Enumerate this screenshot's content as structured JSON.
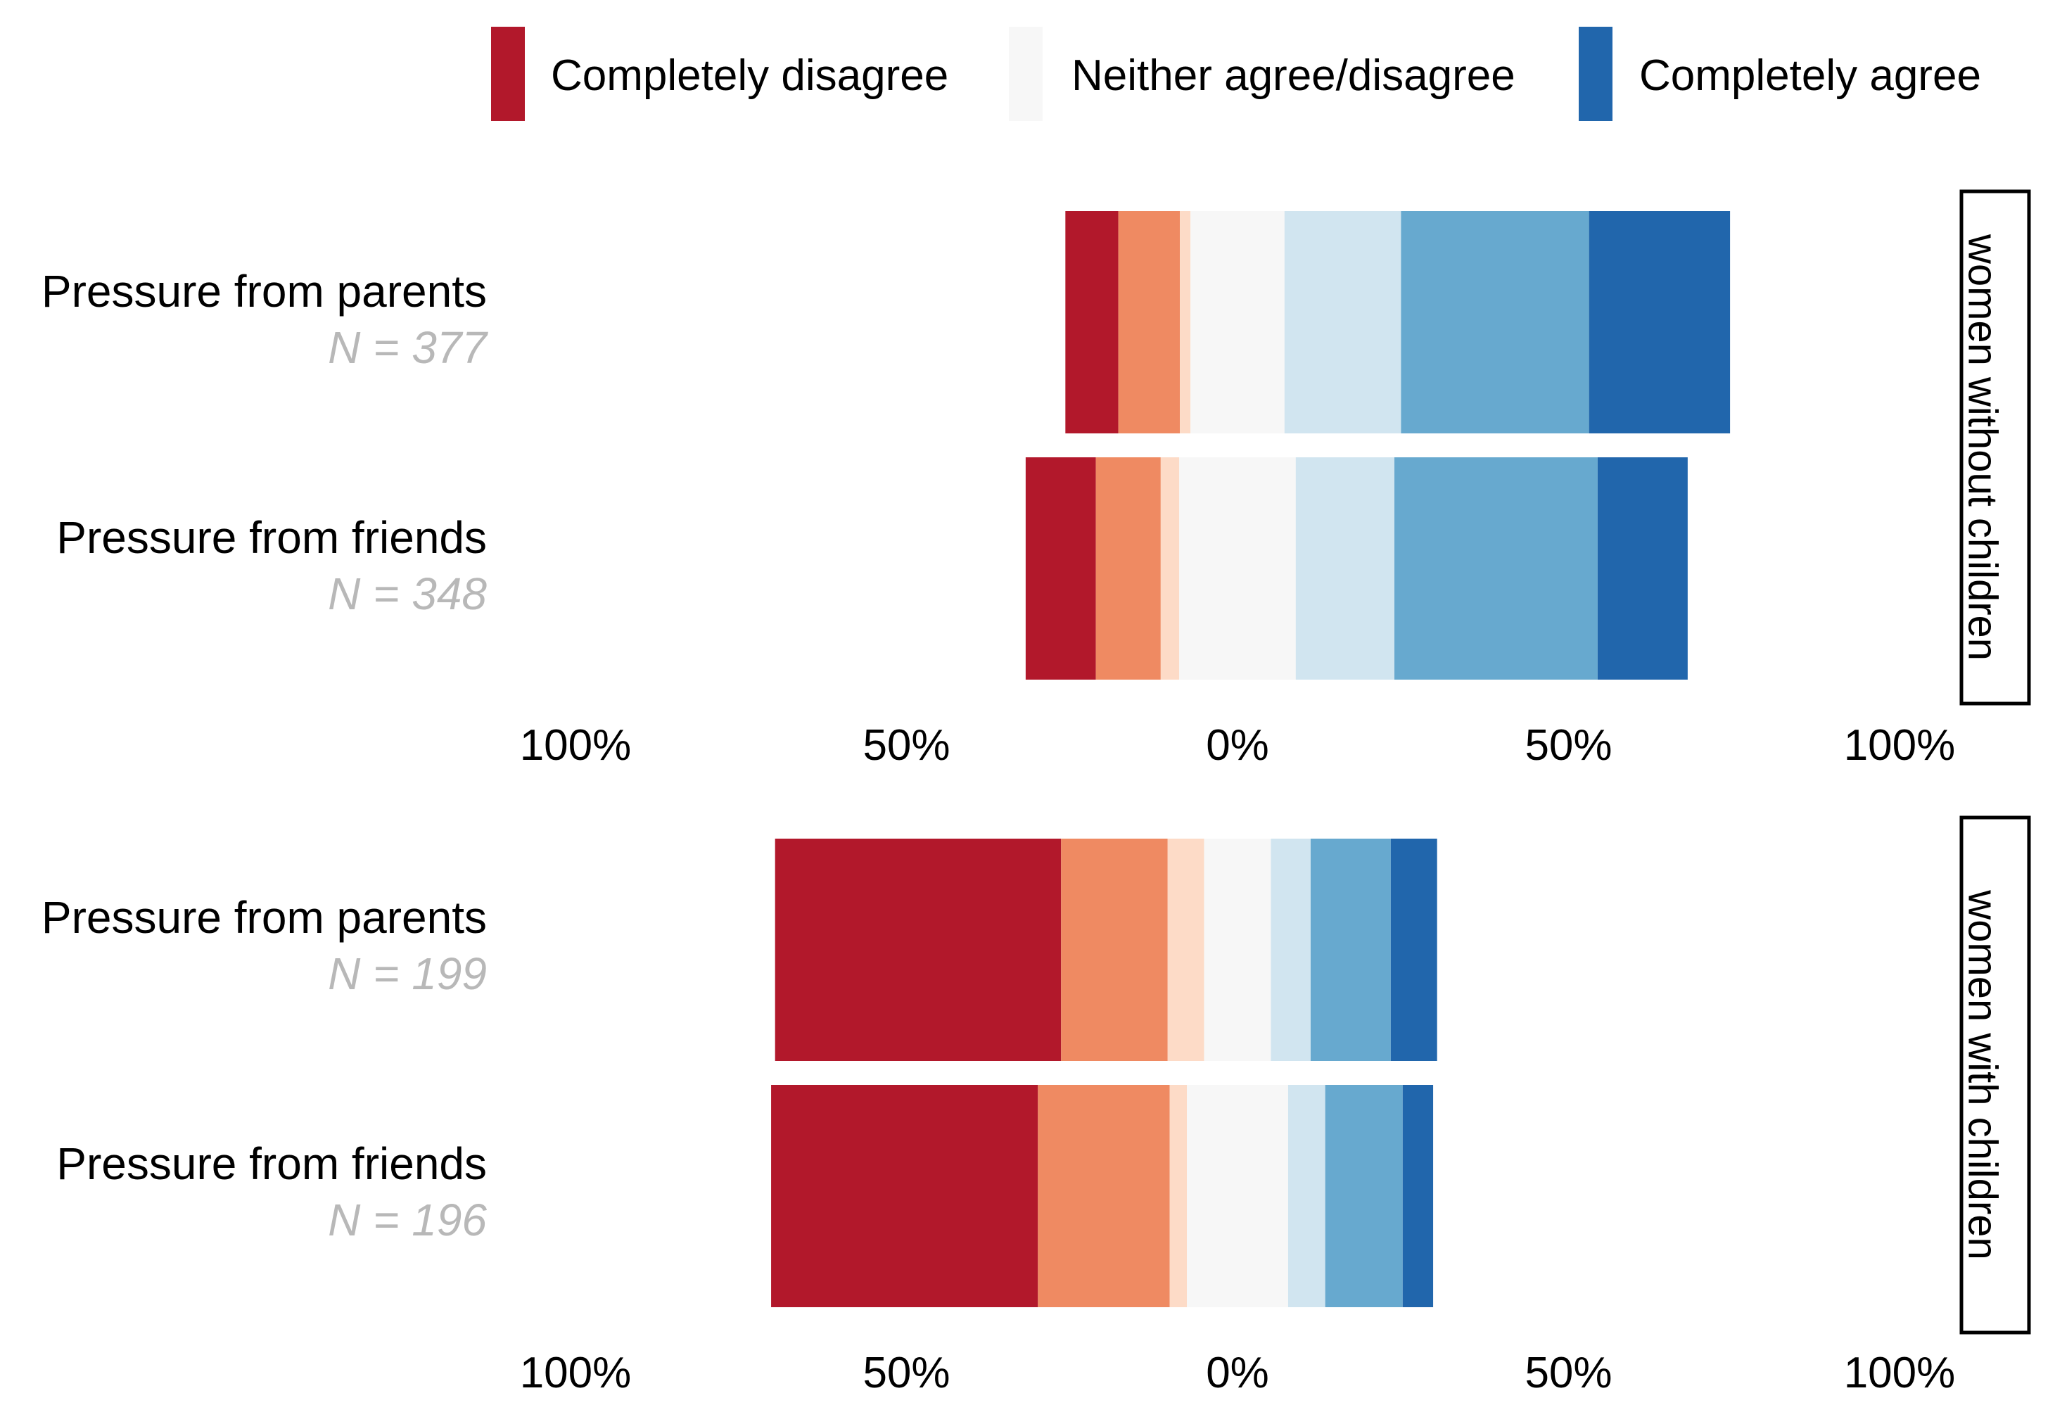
{
  "chart_data": {
    "type": "bar",
    "orientation": "horizontal",
    "stacking": "diverging",
    "legend": {
      "placement": "top-right",
      "entries": [
        {
          "label": "Completely disagree",
          "color": "#b2182b"
        },
        {
          "label": "Neither agree/disagree",
          "color": "#f7f7f7"
        },
        {
          "label": "Completely agree",
          "color": "#2166ac"
        }
      ]
    },
    "scale_colors": [
      "#b2182b",
      "#ef8a62",
      "#fddbc7",
      "#f7f7f7",
      "#d1e5f0",
      "#67a9cf",
      "#2166ac"
    ],
    "xlim": [
      -100,
      100
    ],
    "x_ticks": [
      {
        "value": -100,
        "label": "100%"
      },
      {
        "value": -50,
        "label": "50%"
      },
      {
        "value": 0,
        "label": "0%"
      },
      {
        "value": 50,
        "label": "50%"
      },
      {
        "value": 100,
        "label": "100%"
      }
    ],
    "panels": [
      {
        "strip": "women without children",
        "rows": [
          {
            "category": "Pressure from parents",
            "n_label": "N = 377",
            "values": [
              8,
              9.3,
              1.6,
              14.2,
              17.6,
              28.4,
              21.3
            ]
          },
          {
            "category": "Pressure from friends",
            "n_label": "N = 348",
            "values": [
              10.6,
              9.8,
              2.8,
              17.6,
              14.9,
              30.7,
              13.6
            ]
          }
        ]
      },
      {
        "strip": "women with children",
        "rows": [
          {
            "category": "Pressure from parents",
            "n_label": "N = 199",
            "values": [
              43.2,
              16.1,
              5.5,
              10.1,
              6,
              12.1,
              7
            ]
          },
          {
            "category": "Pressure from friends",
            "n_label": "N = 196",
            "values": [
              40.3,
              19.9,
              2.6,
              15.3,
              5.6,
              11.7,
              4.6
            ]
          }
        ]
      }
    ]
  }
}
